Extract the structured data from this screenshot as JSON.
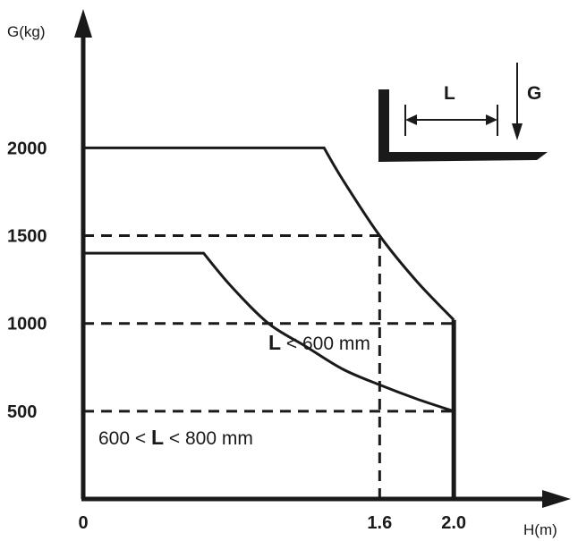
{
  "chart_data": {
    "type": "line",
    "ylabel": "G(kg)",
    "xlabel": "H(m)",
    "x_ticks": [
      "0",
      "1.6",
      "2.0"
    ],
    "y_ticks": [
      "500",
      "1000",
      "1500",
      "2000"
    ],
    "xlim": [
      0,
      2.4
    ],
    "ylim": [
      0,
      2700
    ],
    "grid": false,
    "series": [
      {
        "label": "L < 600 mm",
        "points": [
          [
            0,
            2000
          ],
          [
            1.3,
            2000
          ],
          [
            1.4,
            1820
          ],
          [
            1.6,
            1500
          ],
          [
            1.8,
            1240
          ],
          [
            2.0,
            1020
          ]
        ]
      },
      {
        "label": "600 < L < 800 mm",
        "points": [
          [
            0,
            1400
          ],
          [
            0.65,
            1400
          ],
          [
            0.8,
            1210
          ],
          [
            1.0,
            1000
          ],
          [
            1.2,
            870
          ],
          [
            1.4,
            740
          ],
          [
            1.6,
            650
          ],
          [
            1.8,
            570
          ],
          [
            2.0,
            500
          ]
        ]
      }
    ],
    "drop_line": {
      "x": 2.0,
      "from": 1020,
      "to": 0
    },
    "reference_lines": [
      {
        "axis": "y",
        "value": 1500,
        "to_x": 1.6
      },
      {
        "axis": "y",
        "value": 1000,
        "to_x": 2.0
      },
      {
        "axis": "y",
        "value": 500,
        "to_x": 2.0
      },
      {
        "axis": "x",
        "value": 1.6,
        "to_y": 1500
      }
    ],
    "inset": {
      "length_label": "L",
      "load_label": "G"
    }
  }
}
